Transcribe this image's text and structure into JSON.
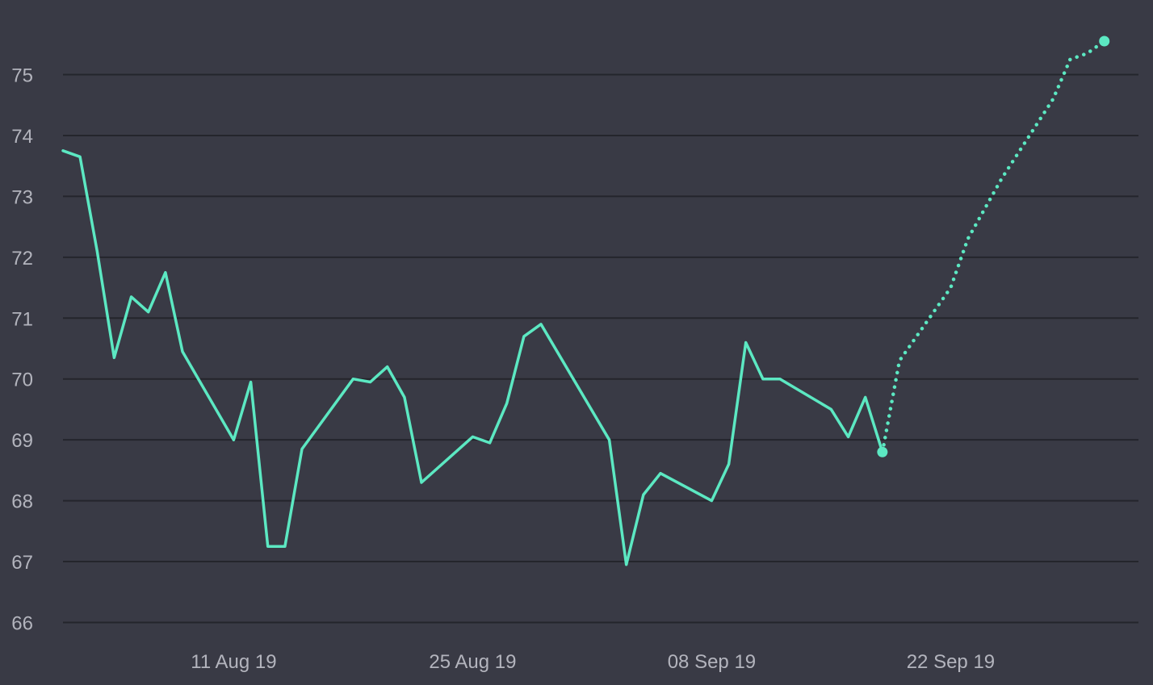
{
  "chart_data": {
    "type": "line",
    "title": "",
    "xlabel": "",
    "ylabel": "",
    "ylim": [
      66,
      75.5
    ],
    "xlim": [
      "2019-08-01",
      "2019-09-29"
    ],
    "grid": true,
    "legend": "none",
    "colors": {
      "background": "#393a45",
      "series": "#5ce8c2",
      "grid": "#24252c",
      "text": "#b3b4bd"
    },
    "y_ticks": [
      "66",
      "67",
      "68",
      "69",
      "70",
      "71",
      "72",
      "73",
      "74",
      "75"
    ],
    "x_ticks": [
      {
        "date": "2019-08-11",
        "label": "11 Aug 19"
      },
      {
        "date": "2019-08-25",
        "label": "25 Aug 19"
      },
      {
        "date": "2019-09-08",
        "label": "08 Sep 19"
      },
      {
        "date": "2019-09-22",
        "label": "22 Sep 19"
      }
    ],
    "series": [
      {
        "style": "solid",
        "marker_on_last": true,
        "points": [
          [
            "2019-08-01",
            73.75
          ],
          [
            "2019-08-02",
            73.65
          ],
          [
            "2019-08-03",
            72.1
          ],
          [
            "2019-08-04",
            70.35
          ],
          [
            "2019-08-05",
            71.35
          ],
          [
            "2019-08-06",
            71.1
          ],
          [
            "2019-08-07",
            71.75
          ],
          [
            "2019-08-08",
            70.45
          ],
          [
            "2019-08-11",
            69.0
          ],
          [
            "2019-08-12",
            69.95
          ],
          [
            "2019-08-13",
            67.25
          ],
          [
            "2019-08-14",
            67.25
          ],
          [
            "2019-08-15",
            68.85
          ],
          [
            "2019-08-18",
            70.0
          ],
          [
            "2019-08-19",
            69.95
          ],
          [
            "2019-08-20",
            70.2
          ],
          [
            "2019-08-21",
            69.7
          ],
          [
            "2019-08-22",
            68.3
          ],
          [
            "2019-08-25",
            69.05
          ],
          [
            "2019-08-26",
            68.95
          ],
          [
            "2019-08-27",
            69.6
          ],
          [
            "2019-08-28",
            70.7
          ],
          [
            "2019-08-29",
            70.9
          ],
          [
            "2019-09-02",
            69.0
          ],
          [
            "2019-09-03",
            66.95
          ],
          [
            "2019-09-04",
            68.1
          ],
          [
            "2019-09-05",
            68.45
          ],
          [
            "2019-09-08",
            68.0
          ],
          [
            "2019-09-09",
            68.6
          ],
          [
            "2019-09-10",
            70.6
          ],
          [
            "2019-09-11",
            70.0
          ],
          [
            "2019-09-12",
            70.0
          ],
          [
            "2019-09-15",
            69.5
          ],
          [
            "2019-09-16",
            69.05
          ],
          [
            "2019-09-17",
            69.7
          ],
          [
            "2019-09-18",
            68.8
          ]
        ]
      },
      {
        "style": "dotted",
        "marker_on_last": true,
        "points": [
          [
            "2019-09-18",
            68.8
          ],
          [
            "2019-09-19",
            70.3
          ],
          [
            "2019-09-22",
            71.5
          ],
          [
            "2019-09-23",
            72.3
          ],
          [
            "2019-09-25",
            73.3
          ],
          [
            "2019-09-28",
            74.6
          ],
          [
            "2019-09-29",
            75.25
          ],
          [
            "2019-09-30",
            75.35
          ],
          [
            "2019-10-01",
            75.55
          ]
        ]
      }
    ]
  }
}
